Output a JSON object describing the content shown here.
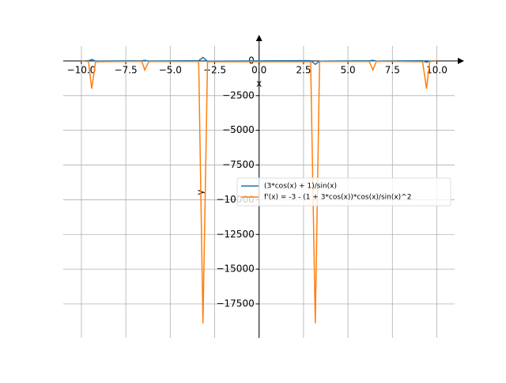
{
  "chart_data": {
    "type": "line",
    "x_label": "x",
    "y_label": "y",
    "x": [
      -10,
      -9.6,
      -9.42,
      -9.2,
      -6.6,
      -6.44,
      -6.2,
      -3.4,
      -3.16,
      -2.9,
      2.9,
      3.16,
      3.4,
      6.2,
      6.4,
      6.6,
      9.2,
      9.42,
      9.6,
      10
    ],
    "series": [
      {
        "name": "(3*cos(x) + 1)/sin(x)",
        "color": "#1f77b4",
        "values": [
          -4,
          10,
          100,
          -10,
          6,
          35,
          -10,
          20,
          250,
          -20,
          20,
          -250,
          -20,
          10,
          35,
          -6,
          10,
          -100,
          -10,
          4
        ]
      },
      {
        "name": "f'(x) = -3 - (1 + 3*cos(x))*cos(x)/sin(x)^2",
        "color": "#ff7f0e",
        "values": [
          -7,
          -50,
          -2000,
          -60,
          -30,
          -650,
          -40,
          -50,
          -18900,
          -60,
          -60,
          -18900,
          -50,
          -40,
          -650,
          -30,
          -60,
          -2000,
          -50,
          -7
        ]
      }
    ],
    "xlim": [
      -11.02,
      11
    ],
    "ylim": [
      -19950,
      1650
    ],
    "xticks": [
      {
        "value": -10,
        "label": "−10.0"
      },
      {
        "value": -7.5,
        "label": "−7.5"
      },
      {
        "value": -5,
        "label": "−5.0"
      },
      {
        "value": -2.5,
        "label": "−2.5"
      },
      {
        "value": 0,
        "label": "0.0"
      },
      {
        "value": 2.5,
        "label": "2.5"
      },
      {
        "value": 5,
        "label": "5.0"
      },
      {
        "value": 7.5,
        "label": "7.5"
      },
      {
        "value": 10,
        "label": "10.0"
      }
    ],
    "yticks": [
      0,
      {
        "value": -2500,
        "label": "−2500"
      },
      {
        "value": -5000,
        "label": "−5000"
      },
      {
        "value": -7500,
        "label": "−7500"
      },
      {
        "value": -10000,
        "label": "−10000"
      },
      {
        "value": -12500,
        "label": "−12500"
      },
      {
        "value": -15000,
        "label": "−15000"
      },
      {
        "value": -17500,
        "label": "−17500"
      }
    ],
    "grid": true,
    "legend": "center right"
  }
}
